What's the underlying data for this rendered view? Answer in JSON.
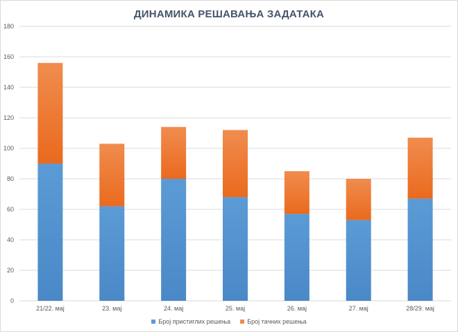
{
  "chart_data": {
    "type": "bar",
    "stacked": true,
    "title": "ДИНАМИКА РЕШАВАЊА ЗАДАТАКА",
    "categories": [
      "21/22. мај",
      "23. мај",
      "24. мај",
      "25. мај",
      "26. мај",
      "27. мај",
      "28/29. мај"
    ],
    "series": [
      {
        "name": "Број пристиглих решења",
        "values": [
          90,
          62,
          80,
          68,
          57,
          53,
          67
        ],
        "color": "#5b9bd5",
        "color_dark": "#4a88c7"
      },
      {
        "name": "Број тачних решења",
        "values": [
          66,
          41,
          34,
          44,
          28,
          27,
          40
        ],
        "color": "#f08c4e",
        "color_dark": "#ea6a1e"
      }
    ],
    "ylim": [
      0,
      180
    ],
    "yticks": [
      0,
      20,
      40,
      60,
      80,
      100,
      120,
      140,
      160,
      180
    ],
    "grid": true,
    "legend": "bottom"
  }
}
